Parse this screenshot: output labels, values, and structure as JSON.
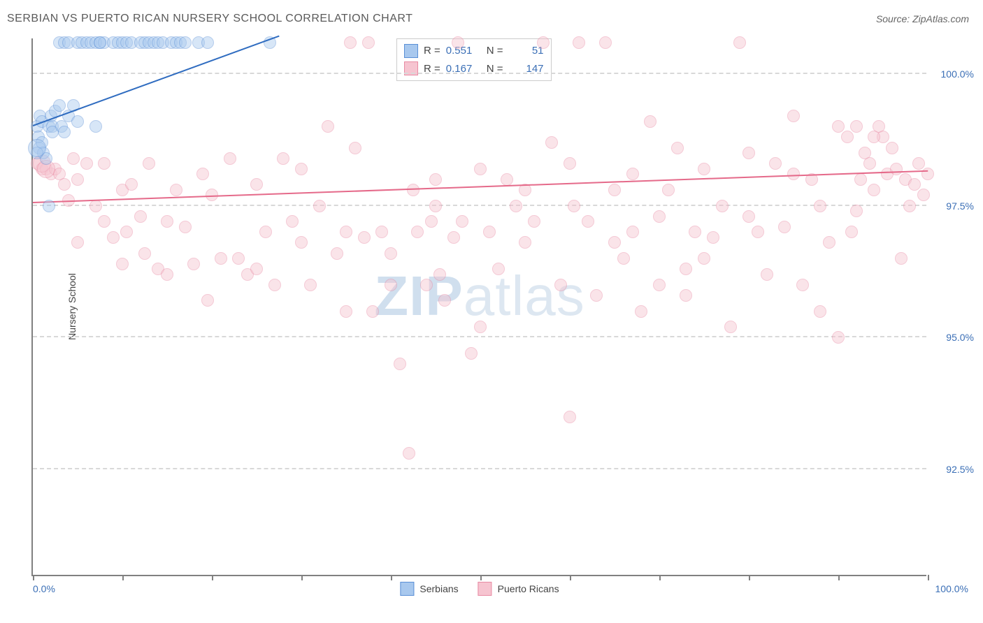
{
  "header": {
    "title": "SERBIAN VS PUERTO RICAN NURSERY SCHOOL CORRELATION CHART",
    "source": "Source: ZipAtlas.com"
  },
  "watermark": {
    "part1": "ZIP",
    "part2": "atlas"
  },
  "chart": {
    "type": "scatter",
    "background_color": "#ffffff",
    "grid_color": "#d8d8d8",
    "axis_color": "#808080",
    "ylabel": "Nursery School",
    "label_fontsize": 14,
    "label_color": "#444444",
    "tick_label_color": "#3b6fb6",
    "tick_fontsize": 14,
    "xlim": [
      0,
      100
    ],
    "ylim": [
      90.5,
      100.7
    ],
    "xticks": [
      0,
      10,
      20,
      30,
      40,
      50,
      60,
      70,
      80,
      90,
      100
    ],
    "yticks": [
      92.5,
      95.0,
      97.5,
      100.0
    ],
    "ytick_labels": [
      "92.5%",
      "95.0%",
      "97.5%",
      "100.0%"
    ],
    "xaxis_label_left": "0.0%",
    "xaxis_label_right": "100.0%",
    "marker_radius": 9,
    "marker_opacity": 0.45,
    "marker_border_width": 1.5,
    "series": {
      "serbians": {
        "label": "Serbians",
        "fill_color": "#a8c8ee",
        "border_color": "#5a8fd6",
        "line_color": "#2f6cc0",
        "r_value": "0.551",
        "n_value": "51",
        "trend_line": {
          "x1": 0,
          "y1": 99.0,
          "x2": 27.5,
          "y2": 100.7
        },
        "points": [
          [
            0.5,
            99.0
          ],
          [
            0.6,
            98.8
          ],
          [
            0.8,
            99.2
          ],
          [
            0.7,
            98.6
          ],
          [
            1.0,
            98.7
          ],
          [
            1.2,
            98.5
          ],
          [
            1.5,
            98.4
          ],
          [
            1.0,
            99.1
          ],
          [
            0.5,
            98.5
          ],
          [
            1.8,
            99.0
          ],
          [
            2.0,
            99.2
          ],
          [
            2.2,
            99.0
          ],
          [
            2.5,
            99.3
          ],
          [
            3.0,
            99.4
          ],
          [
            1.8,
            97.5
          ],
          [
            2.2,
            98.9
          ],
          [
            3.2,
            99.0
          ],
          [
            3.5,
            98.9
          ],
          [
            4.0,
            99.2
          ],
          [
            4.5,
            99.4
          ],
          [
            3.0,
            100.6
          ],
          [
            3.5,
            100.6
          ],
          [
            4.0,
            100.6
          ],
          [
            5.0,
            100.6
          ],
          [
            5.5,
            100.6
          ],
          [
            6.0,
            100.6
          ],
          [
            6.5,
            100.6
          ],
          [
            7.0,
            100.6
          ],
          [
            7.5,
            100.6
          ],
          [
            8.0,
            100.6
          ],
          [
            9.0,
            100.6
          ],
          [
            9.5,
            100.6
          ],
          [
            10.0,
            100.6
          ],
          [
            10.5,
            100.6
          ],
          [
            11.0,
            100.6
          ],
          [
            12.0,
            100.6
          ],
          [
            12.5,
            100.6
          ],
          [
            13.0,
            100.6
          ],
          [
            13.5,
            100.6
          ],
          [
            14.0,
            100.6
          ],
          [
            14.5,
            100.6
          ],
          [
            15.5,
            100.6
          ],
          [
            16.0,
            100.6
          ],
          [
            16.5,
            100.6
          ],
          [
            17.0,
            100.6
          ],
          [
            18.5,
            100.6
          ],
          [
            19.5,
            100.6
          ],
          [
            5.0,
            99.1
          ],
          [
            7.0,
            99.0
          ],
          [
            26.5,
            100.6
          ],
          [
            7.5,
            100.6
          ]
        ],
        "large_points": [
          [
            0.5,
            98.6,
            13
          ]
        ]
      },
      "puerto_ricans": {
        "label": "Puerto Ricans",
        "fill_color": "#f6c4d0",
        "border_color": "#e88aa3",
        "line_color": "#e56a8a",
        "r_value": "0.167",
        "n_value": "147",
        "trend_line": {
          "x1": 0,
          "y1": 97.55,
          "x2": 100,
          "y2": 98.15
        },
        "points": [
          [
            0.5,
            98.3
          ],
          [
            1.0,
            98.2
          ],
          [
            1.5,
            98.2
          ],
          [
            2.0,
            98.1
          ],
          [
            2.5,
            98.2
          ],
          [
            3.0,
            98.1
          ],
          [
            3.5,
            97.9
          ],
          [
            4.0,
            97.6
          ],
          [
            4.5,
            98.4
          ],
          [
            5.0,
            98.0
          ],
          [
            6.0,
            98.3
          ],
          [
            7.0,
            97.5
          ],
          [
            8.0,
            97.2
          ],
          [
            9.0,
            96.9
          ],
          [
            10.0,
            97.8
          ],
          [
            10.5,
            97.0
          ],
          [
            11.0,
            97.9
          ],
          [
            12.0,
            97.3
          ],
          [
            12.5,
            96.6
          ],
          [
            13.0,
            98.3
          ],
          [
            14.0,
            96.3
          ],
          [
            15.0,
            96.2
          ],
          [
            16.0,
            97.8
          ],
          [
            17.0,
            97.1
          ],
          [
            18.0,
            96.4
          ],
          [
            19.0,
            98.1
          ],
          [
            19.5,
            95.7
          ],
          [
            20.0,
            97.7
          ],
          [
            21.0,
            96.5
          ],
          [
            22.0,
            98.4
          ],
          [
            23.0,
            96.5
          ],
          [
            24.0,
            96.2
          ],
          [
            25.0,
            97.9
          ],
          [
            26.0,
            97.0
          ],
          [
            27.0,
            96.0
          ],
          [
            28.0,
            98.4
          ],
          [
            29.0,
            97.2
          ],
          [
            30.0,
            98.2
          ],
          [
            31.0,
            96.0
          ],
          [
            32.0,
            97.5
          ],
          [
            33.0,
            99.0
          ],
          [
            34.0,
            96.6
          ],
          [
            35.0,
            97.0
          ],
          [
            35.5,
            100.6
          ],
          [
            36.0,
            98.6
          ],
          [
            37.0,
            96.9
          ],
          [
            37.5,
            100.6
          ],
          [
            38.0,
            95.5
          ],
          [
            39.0,
            97.0
          ],
          [
            40.0,
            96.6
          ],
          [
            41.0,
            94.5
          ],
          [
            42.0,
            92.8
          ],
          [
            42.5,
            97.8
          ],
          [
            43.0,
            97.0
          ],
          [
            44.0,
            96.0
          ],
          [
            44.5,
            97.2
          ],
          [
            45.0,
            98.0
          ],
          [
            45.5,
            96.2
          ],
          [
            46.0,
            95.7
          ],
          [
            47.0,
            96.9
          ],
          [
            47.5,
            100.6
          ],
          [
            48.0,
            97.2
          ],
          [
            49.0,
            94.7
          ],
          [
            50.0,
            98.2
          ],
          [
            51.0,
            97.0
          ],
          [
            52.0,
            96.3
          ],
          [
            53.0,
            98.0
          ],
          [
            54.0,
            97.5
          ],
          [
            55.0,
            96.8
          ],
          [
            56.0,
            97.2
          ],
          [
            57.0,
            100.6
          ],
          [
            58.0,
            98.7
          ],
          [
            59.0,
            96.0
          ],
          [
            60.0,
            93.5
          ],
          [
            60.5,
            97.5
          ],
          [
            61.0,
            100.6
          ],
          [
            62.0,
            97.2
          ],
          [
            63.0,
            95.8
          ],
          [
            64.0,
            100.6
          ],
          [
            65.0,
            97.8
          ],
          [
            66.0,
            96.5
          ],
          [
            67.0,
            98.1
          ],
          [
            68.0,
            95.5
          ],
          [
            69.0,
            99.1
          ],
          [
            70.0,
            96.0
          ],
          [
            71.0,
            97.8
          ],
          [
            72.0,
            98.6
          ],
          [
            73.0,
            96.3
          ],
          [
            74.0,
            97.0
          ],
          [
            75.0,
            98.2
          ],
          [
            76.0,
            96.9
          ],
          [
            77.0,
            97.5
          ],
          [
            78.0,
            95.2
          ],
          [
            79.0,
            100.6
          ],
          [
            80.0,
            98.5
          ],
          [
            81.0,
            97.0
          ],
          [
            82.0,
            96.2
          ],
          [
            83.0,
            98.3
          ],
          [
            84.0,
            97.1
          ],
          [
            85.0,
            99.2
          ],
          [
            86.0,
            96.0
          ],
          [
            87.0,
            98.0
          ],
          [
            88.0,
            97.5
          ],
          [
            89.0,
            96.8
          ],
          [
            90.0,
            95.0
          ],
          [
            91.0,
            98.8
          ],
          [
            91.5,
            97.0
          ],
          [
            92.0,
            99.0
          ],
          [
            92.5,
            98.0
          ],
          [
            93.0,
            98.5
          ],
          [
            93.5,
            98.3
          ],
          [
            94.0,
            97.8
          ],
          [
            94.5,
            99.0
          ],
          [
            95.0,
            98.8
          ],
          [
            95.5,
            98.1
          ],
          [
            96.0,
            98.6
          ],
          [
            96.5,
            98.2
          ],
          [
            97.0,
            96.5
          ],
          [
            97.5,
            98.0
          ],
          [
            98.0,
            97.5
          ],
          [
            98.5,
            97.9
          ],
          [
            99.0,
            98.3
          ],
          [
            99.5,
            97.7
          ],
          [
            100.0,
            98.1
          ],
          [
            10.0,
            96.4
          ],
          [
            15.0,
            97.2
          ],
          [
            25.0,
            96.3
          ],
          [
            30.0,
            96.8
          ],
          [
            35.0,
            95.5
          ],
          [
            40.0,
            96.0
          ],
          [
            50.0,
            95.2
          ],
          [
            55.0,
            97.8
          ],
          [
            60.0,
            98.3
          ],
          [
            65.0,
            96.8
          ],
          [
            70.0,
            97.3
          ],
          [
            75.0,
            96.5
          ],
          [
            80.0,
            97.3
          ],
          [
            85.0,
            98.1
          ],
          [
            88.0,
            95.5
          ],
          [
            90.0,
            99.0
          ],
          [
            92.0,
            97.4
          ],
          [
            94.0,
            98.8
          ],
          [
            5.0,
            96.8
          ],
          [
            8.0,
            98.3
          ],
          [
            45.0,
            97.5
          ],
          [
            67.0,
            97.0
          ],
          [
            73.0,
            95.8
          ]
        ],
        "large_points": [
          [
            1.0,
            98.3,
            13
          ],
          [
            1.5,
            98.2,
            13
          ]
        ]
      }
    }
  },
  "legend_top": {
    "r_label": "R =",
    "n_label": "N ="
  }
}
